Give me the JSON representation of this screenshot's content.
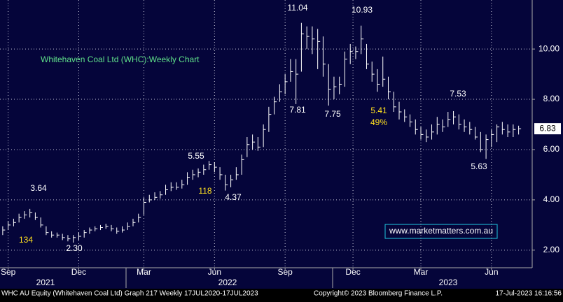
{
  "chart_data": {
    "type": "hlc",
    "title": "Whitehaven Coal Ltd (WHC):Weekly Chart",
    "title_color": "#5fe08a",
    "bar_color": "#ffffff",
    "background": "#05053a",
    "ylim": [
      1.3,
      11.95
    ],
    "yticks": [
      {
        "value": 2,
        "label": "2.00"
      },
      {
        "value": 4,
        "label": "4.00"
      },
      {
        "value": 6,
        "label": "6.00"
      },
      {
        "value": 8,
        "label": "8.00"
      },
      {
        "value": 10,
        "label": "10.00"
      }
    ],
    "xlim": [
      -0.5,
      97.5
    ],
    "xticks": [
      {
        "value": 1,
        "label": "Sep"
      },
      {
        "value": 14,
        "label": "Dec"
      },
      {
        "value": 26,
        "label": "Mar"
      },
      {
        "value": 39,
        "label": "Jun"
      },
      {
        "value": 52,
        "label": "Sep"
      },
      {
        "value": 64.5,
        "label": "Dec"
      },
      {
        "value": 77,
        "label": "Mar"
      },
      {
        "value": 90,
        "label": "Jun"
      }
    ],
    "years": [
      "2021",
      "2022",
      "2023"
    ],
    "grid": true,
    "high": [
      2.95,
      3.15,
      3.25,
      3.45,
      3.55,
      3.64,
      3.5,
      3.3,
      2.95,
      2.75,
      2.7,
      2.65,
      2.6,
      2.6,
      2.7,
      2.8,
      2.9,
      2.95,
      3.0,
      3.05,
      3.0,
      2.9,
      2.95,
      3.1,
      3.25,
      3.45,
      4.1,
      4.2,
      4.3,
      4.35,
      4.6,
      4.7,
      4.7,
      4.8,
      5.1,
      5.2,
      5.25,
      5.4,
      5.55,
      5.5,
      5.3,
      5.0,
      5.0,
      5.3,
      5.8,
      6.5,
      6.6,
      6.5,
      7.0,
      7.7,
      8.1,
      8.6,
      9.0,
      9.6,
      9.6,
      11.04,
      10.9,
      10.9,
      10.8,
      10.5,
      9.4,
      8.9,
      8.9,
      9.9,
      10.2,
      10.1,
      10.93,
      10.2,
      9.5,
      9.2,
      9.7,
      8.9,
      8.3,
      7.9,
      7.6,
      7.4,
      7.2,
      6.9,
      6.8,
      7.0,
      7.3,
      7.2,
      7.5,
      7.53,
      7.4,
      7.2,
      7.1,
      6.9,
      6.7,
      6.6,
      6.8,
      7.0,
      7.1,
      7.0,
      7.0,
      6.95
    ],
    "low": [
      2.6,
      2.8,
      2.95,
      3.1,
      3.25,
      3.3,
      3.2,
      2.9,
      2.6,
      2.5,
      2.5,
      2.4,
      2.35,
      2.3,
      2.4,
      2.5,
      2.65,
      2.75,
      2.8,
      2.85,
      2.75,
      2.65,
      2.7,
      2.8,
      2.95,
      3.1,
      3.4,
      3.9,
      4.0,
      4.05,
      4.2,
      4.35,
      4.4,
      4.45,
      4.6,
      4.8,
      4.9,
      5.0,
      5.2,
      5.1,
      4.8,
      4.37,
      4.5,
      4.8,
      5.0,
      5.7,
      6.0,
      5.95,
      6.1,
      6.7,
      7.4,
      7.9,
      8.2,
      8.7,
      7.81,
      9.1,
      10.0,
      9.8,
      9.2,
      8.9,
      7.75,
      8.0,
      8.2,
      8.5,
      9.4,
      9.6,
      9.8,
      9.2,
      8.7,
      8.3,
      8.5,
      8.0,
      7.5,
      7.2,
      7.1,
      6.9,
      6.6,
      6.4,
      6.3,
      6.4,
      6.6,
      6.7,
      6.9,
      7.0,
      6.8,
      6.7,
      6.6,
      6.4,
      5.9,
      5.63,
      6.1,
      6.3,
      6.6,
      6.5,
      6.5,
      6.6
    ],
    "close": [
      2.8,
      3.0,
      3.1,
      3.3,
      3.4,
      3.5,
      3.3,
      3.0,
      2.7,
      2.6,
      2.6,
      2.5,
      2.45,
      2.5,
      2.55,
      2.7,
      2.8,
      2.85,
      2.9,
      2.95,
      2.85,
      2.75,
      2.8,
      2.95,
      3.1,
      3.3,
      3.9,
      4.0,
      4.1,
      4.2,
      4.4,
      4.5,
      4.5,
      4.6,
      4.9,
      5.0,
      5.1,
      5.2,
      5.4,
      5.3,
      5.0,
      4.6,
      4.8,
      5.0,
      5.6,
      6.2,
      6.3,
      6.1,
      6.8,
      7.4,
      7.9,
      8.3,
      8.7,
      9.1,
      9.0,
      10.6,
      10.5,
      10.4,
      10.3,
      9.4,
      8.4,
      8.5,
      8.6,
      9.6,
      9.9,
      9.9,
      10.4,
      9.4,
      9.0,
      8.6,
      8.8,
      8.3,
      7.7,
      7.5,
      7.3,
      7.1,
      6.8,
      6.6,
      6.5,
      6.7,
      7.0,
      6.9,
      7.2,
      7.3,
      7.0,
      6.9,
      6.8,
      6.5,
      6.0,
      6.4,
      6.6,
      6.9,
      6.8,
      6.7,
      6.8,
      6.83
    ],
    "annotations": [
      {
        "text": "3.64",
        "color": "#ffffff"
      },
      {
        "text": "134",
        "color": "#ffe020"
      },
      {
        "text": "2.30",
        "color": "#ffffff"
      },
      {
        "text": "5.55",
        "color": "#ffffff"
      },
      {
        "text": "118",
        "color": "#ffe020"
      },
      {
        "text": "4.37",
        "color": "#ffffff"
      },
      {
        "text": "11.04",
        "color": "#ffffff"
      },
      {
        "text": "7.81",
        "color": "#ffffff"
      },
      {
        "text": "7.75",
        "color": "#ffffff"
      },
      {
        "text": "10.93",
        "color": "#ffffff"
      },
      {
        "text": "5.41",
        "color": "#ffe020"
      },
      {
        "text": "49%",
        "color": "#ffe020"
      },
      {
        "text": "7.53",
        "color": "#ffffff"
      },
      {
        "text": "5.63",
        "color": "#ffffff"
      }
    ],
    "watermark": "www.marketmatters.com.au",
    "footer_left": "WHC AU Equity (Whitehaven Coal Ltd) Graph 217  Weekly 17JUL2020-17JUL2023",
    "footer_center": "Copyright© 2023 Bloomberg Finance L.P.",
    "footer_right": "17-Jul-2023 16:16:56"
  }
}
